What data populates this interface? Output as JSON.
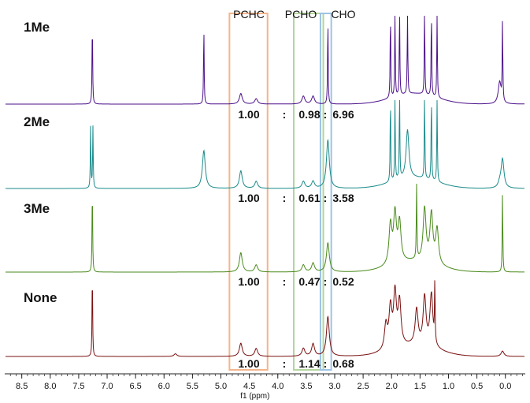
{
  "chart_data": {
    "type": "line",
    "title": "",
    "xlabel": "f1 (ppm)",
    "ylabel": "",
    "xlim": [
      8.8,
      -0.35
    ],
    "x_reversed": true,
    "grid": false,
    "x_ticks": [
      "8.5",
      "8.0",
      "7.5",
      "7.0",
      "6.5",
      "6.0",
      "5.5",
      "5.0",
      "4.5",
      "4.0",
      "3.5",
      "3.0",
      "2.5",
      "2.0",
      "1.5",
      "1.0",
      "0.5",
      "0.0"
    ],
    "region_labels": [
      {
        "label": "PCHC",
        "ppm_range": [
          4.85,
          4.18
        ],
        "color": "#f3b58c"
      },
      {
        "label": "PCHO",
        "ppm_range": [
          3.72,
          3.2
        ],
        "color": "#b4d59c"
      },
      {
        "label": "CHO",
        "ppm_range": [
          3.25,
          3.06
        ],
        "color": "#9dc3e6"
      }
    ],
    "series": [
      {
        "name": "1Me",
        "color": "#4b0f8a",
        "ratio": [
          "1.00",
          ":",
          "0.98",
          ":",
          "6.96"
        ],
        "peaks": [
          {
            "ppm": 7.26,
            "height": 0.97
          },
          {
            "ppm": 5.3,
            "height": 0.89
          },
          {
            "ppm": 4.65,
            "height": 0.12
          },
          {
            "ppm": 4.38,
            "height": 0.06
          },
          {
            "ppm": 3.55,
            "height": 0.09
          },
          {
            "ppm": 3.38,
            "height": 0.09
          },
          {
            "ppm": 3.12,
            "height": 0.99
          },
          {
            "ppm": 2.02,
            "height": 0.99
          },
          {
            "ppm": 1.94,
            "height": 0.99
          },
          {
            "ppm": 1.86,
            "height": 0.99
          },
          {
            "ppm": 1.72,
            "height": 0.99
          },
          {
            "ppm": 1.42,
            "height": 0.99
          },
          {
            "ppm": 1.3,
            "height": 0.99
          },
          {
            "ppm": 1.2,
            "height": 0.99
          },
          {
            "ppm": 0.05,
            "height": 0.92
          },
          {
            "ppm": 0.1,
            "height": 0.25
          }
        ]
      },
      {
        "name": "2Me",
        "color": "#1a8a8a",
        "ratio": [
          "1.00",
          ":",
          "0.61",
          ":",
          "3.58"
        ],
        "peaks": [
          {
            "ppm": 7.29,
            "height": 0.72
          },
          {
            "ppm": 7.25,
            "height": 0.7
          },
          {
            "ppm": 5.3,
            "height": 0.43
          },
          {
            "ppm": 4.65,
            "height": 0.2
          },
          {
            "ppm": 4.38,
            "height": 0.08
          },
          {
            "ppm": 3.55,
            "height": 0.08
          },
          {
            "ppm": 3.38,
            "height": 0.08
          },
          {
            "ppm": 3.12,
            "height": 0.55
          },
          {
            "ppm": 2.02,
            "height": 0.99
          },
          {
            "ppm": 1.94,
            "height": 0.99
          },
          {
            "ppm": 1.86,
            "height": 0.99
          },
          {
            "ppm": 1.72,
            "height": 0.55
          },
          {
            "ppm": 1.42,
            "height": 0.99
          },
          {
            "ppm": 1.3,
            "height": 0.99
          },
          {
            "ppm": 1.2,
            "height": 0.99
          },
          {
            "ppm": 0.05,
            "height": 0.33
          },
          {
            "ppm": 0.1,
            "height": 0.05
          }
        ]
      },
      {
        "name": "3Me",
        "color": "#4a8a1c",
        "ratio": [
          "1.00",
          ":",
          "0.47",
          ":",
          "0.52"
        ],
        "peaks": [
          {
            "ppm": 7.26,
            "height": 0.99
          },
          {
            "ppm": 4.65,
            "height": 0.22
          },
          {
            "ppm": 4.38,
            "height": 0.08
          },
          {
            "ppm": 3.55,
            "height": 0.08
          },
          {
            "ppm": 3.38,
            "height": 0.1
          },
          {
            "ppm": 3.12,
            "height": 0.33
          },
          {
            "ppm": 2.02,
            "height": 0.45
          },
          {
            "ppm": 1.94,
            "height": 0.55
          },
          {
            "ppm": 1.86,
            "height": 0.45
          },
          {
            "ppm": 1.56,
            "height": 0.93
          },
          {
            "ppm": 1.42,
            "height": 0.6
          },
          {
            "ppm": 1.3,
            "height": 0.55
          },
          {
            "ppm": 1.2,
            "height": 0.4
          },
          {
            "ppm": 0.05,
            "height": 0.92
          }
        ]
      },
      {
        "name": "None",
        "color": "#7a1010",
        "ratio": [
          "1.00",
          ":",
          "1.14",
          ":",
          "0.68"
        ],
        "peaks": [
          {
            "ppm": 7.26,
            "height": 0.99
          },
          {
            "ppm": 5.8,
            "height": 0.03
          },
          {
            "ppm": 4.65,
            "height": 0.15
          },
          {
            "ppm": 4.38,
            "height": 0.09
          },
          {
            "ppm": 3.55,
            "height": 0.09
          },
          {
            "ppm": 3.38,
            "height": 0.14
          },
          {
            "ppm": 3.12,
            "height": 0.45
          },
          {
            "ppm": 2.1,
            "height": 0.28
          },
          {
            "ppm": 2.02,
            "height": 0.45
          },
          {
            "ppm": 1.94,
            "height": 0.6
          },
          {
            "ppm": 1.86,
            "height": 0.5
          },
          {
            "ppm": 1.56,
            "height": 0.4
          },
          {
            "ppm": 1.42,
            "height": 0.55
          },
          {
            "ppm": 1.3,
            "height": 0.6
          },
          {
            "ppm": 1.24,
            "height": 0.7
          },
          {
            "ppm": 0.05,
            "height": 0.06
          }
        ]
      }
    ]
  }
}
